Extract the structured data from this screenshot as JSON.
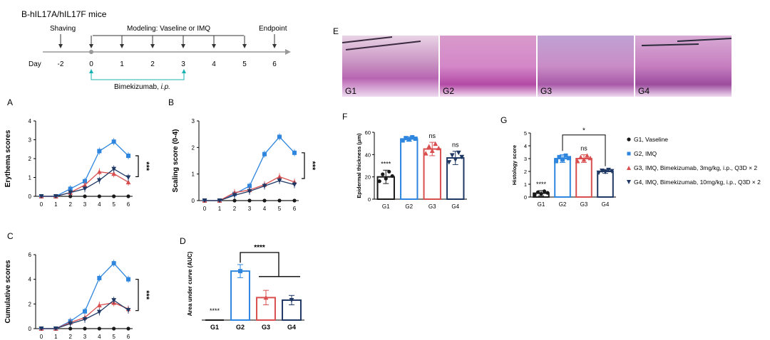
{
  "timeline": {
    "title": "B-hIL17A/hIL17F  mice",
    "shaving_label": "Shaving",
    "modeling_label": "Modeling: Vaseline or IMQ",
    "endpoint_label": "Endpoint",
    "day_label": "Day",
    "days": [
      "-2",
      "0",
      "1",
      "2",
      "3",
      "4",
      "5",
      "6"
    ],
    "drug_label_a": "Bimekizumab, ",
    "drug_label_b": "i.p.",
    "colors": {
      "line": "#999999",
      "drug": "#1ab3b3"
    }
  },
  "panels": {
    "A": "A",
    "B": "B",
    "C": "C",
    "D": "D",
    "E": "E",
    "F": "F",
    "G": "G"
  },
  "histology_labels": [
    "G1",
    "G2",
    "G3",
    "G4"
  ],
  "legend": [
    {
      "marker": "circle",
      "color": "#1a1a1a",
      "label": "G1, Vaseline"
    },
    {
      "marker": "square",
      "color": "#2e86de",
      "label": "G2, IMQ"
    },
    {
      "marker": "triangle-up",
      "color": "#d94f4f",
      "label": "G3, IMQ, Bimekizumab, 3mg/kg, i.p., Q3D × 2"
    },
    {
      "marker": "triangle-down",
      "color": "#1f3864",
      "label": "G4, IMQ, Bimekizumab, 10mg/kg, i.p., Q3D × 2"
    }
  ],
  "colors": {
    "G1": "#1a1a1a",
    "G2": "#2e86de",
    "G3": "#d94f4f",
    "G4": "#1f3864"
  },
  "chart_data": [
    {
      "id": "A",
      "type": "line",
      "ylabel": "Erythema scores",
      "xlabel": "",
      "x": [
        0,
        1,
        2,
        3,
        4,
        5,
        6
      ],
      "ylim": [
        0,
        4
      ],
      "yticks": [
        0,
        1,
        2,
        3,
        4
      ],
      "significance": "***",
      "series": [
        {
          "group": "G1",
          "values": [
            0,
            0,
            0,
            0,
            0,
            0,
            0
          ]
        },
        {
          "group": "G2",
          "values": [
            0,
            0,
            0.4,
            0.8,
            2.4,
            2.9,
            2.15
          ]
        },
        {
          "group": "G3",
          "values": [
            0,
            0,
            0.2,
            0.6,
            1.3,
            1.2,
            0.75
          ]
        },
        {
          "group": "G4",
          "values": [
            0,
            0,
            0.2,
            0.4,
            0.85,
            1.45,
            1.0
          ]
        }
      ]
    },
    {
      "id": "B",
      "type": "line",
      "ylabel": "Scaling score (0-4)",
      "xlabel": "",
      "x": [
        0,
        1,
        2,
        3,
        4,
        5,
        6
      ],
      "ylim": [
        0,
        3
      ],
      "yticks": [
        0,
        1,
        2,
        3
      ],
      "significance": "***",
      "series": [
        {
          "group": "G1",
          "values": [
            0,
            0,
            0,
            0,
            0,
            0,
            0
          ]
        },
        {
          "group": "G2",
          "values": [
            0,
            0,
            0.25,
            0.55,
            1.75,
            2.4,
            1.8
          ]
        },
        {
          "group": "G3",
          "values": [
            0,
            0,
            0.3,
            0.4,
            0.6,
            0.9,
            0.7
          ]
        },
        {
          "group": "G4",
          "values": [
            0,
            0,
            0.2,
            0.35,
            0.55,
            0.75,
            0.6
          ]
        }
      ]
    },
    {
      "id": "C",
      "type": "line",
      "ylabel": "Cumulative scores",
      "xlabel": "",
      "x": [
        0,
        1,
        2,
        3,
        4,
        5,
        6
      ],
      "ylim": [
        0,
        6
      ],
      "yticks": [
        0,
        2,
        4,
        6
      ],
      "significance": "***",
      "series": [
        {
          "group": "G1",
          "values": [
            0,
            0,
            0,
            0,
            0,
            0,
            0
          ]
        },
        {
          "group": "G2",
          "values": [
            0,
            0,
            0.6,
            1.4,
            4.1,
            5.3,
            4.0
          ]
        },
        {
          "group": "G3",
          "values": [
            0,
            0,
            0.5,
            0.9,
            1.9,
            2.1,
            1.6
          ]
        },
        {
          "group": "G4",
          "values": [
            0,
            0,
            0.4,
            0.75,
            1.35,
            2.3,
            1.5
          ]
        }
      ]
    },
    {
      "id": "D",
      "type": "bar",
      "ylabel": "Area under curve (AUC)",
      "xlabel": "",
      "categories": [
        "G1",
        "G2",
        "G3",
        "G4"
      ],
      "values": [
        0,
        13.5,
        6.2,
        5.5
      ],
      "errors": [
        0,
        1.8,
        2.0,
        1.3
      ],
      "ylim": [
        0,
        20
      ],
      "annotations": {
        "G1": "****",
        "bracket": "****"
      }
    },
    {
      "id": "F",
      "type": "bar",
      "ylabel": "Epidermal thickness (μm)",
      "xlabel": "",
      "categories": [
        "G1",
        "G2",
        "G3",
        "G4"
      ],
      "values": [
        20,
        54,
        45,
        37
      ],
      "errors": [
        6,
        2,
        6,
        6
      ],
      "ylim": [
        0,
        60
      ],
      "yticks": [
        0,
        20,
        40,
        60
      ],
      "annotations": {
        "G1": "****",
        "G3": "ns",
        "G4": "ns"
      }
    },
    {
      "id": "G",
      "type": "bar",
      "ylabel": "Histology score",
      "xlabel": "",
      "categories": [
        "G1",
        "G2",
        "G3",
        "G4"
      ],
      "values": [
        0.3,
        3.0,
        3.0,
        2.0
      ],
      "errors": [
        0.2,
        0.3,
        0.3,
        0.15
      ],
      "ylim": [
        0,
        5
      ],
      "yticks": [
        0,
        1,
        2,
        3,
        4,
        5
      ],
      "annotations": {
        "G1": "****",
        "G3": "ns",
        "bracket": "*"
      }
    }
  ]
}
